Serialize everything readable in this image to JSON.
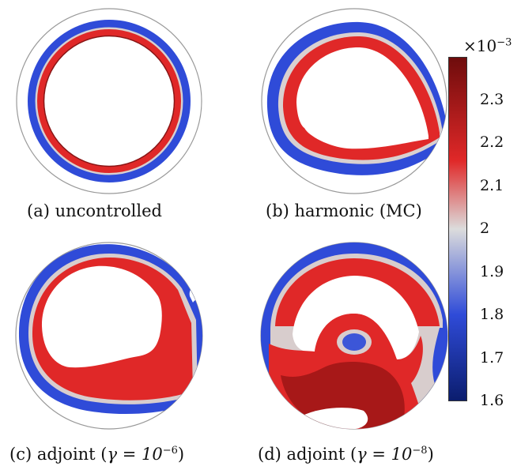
{
  "panels": [
    {
      "caption_prefix": "(a) uncontrolled",
      "caption_expr": "",
      "caption_exp": "",
      "caption_suffix": ""
    },
    {
      "caption_prefix": "(b) harmonic (MC)",
      "caption_expr": "",
      "caption_exp": "",
      "caption_suffix": ""
    },
    {
      "caption_prefix": "(c) adjoint (",
      "caption_expr": "γ = 10",
      "caption_exp": "−6",
      "caption_suffix": ")"
    },
    {
      "caption_prefix": "(d) adjoint (",
      "caption_expr": "γ = 10",
      "caption_exp": "−8",
      "caption_suffix": ")"
    }
  ],
  "colorbar": {
    "multiplier_base": "×10",
    "multiplier_exp": "−3",
    "ticks": [
      "2.3",
      "2.2",
      "2.1",
      "2",
      "1.9",
      "1.8",
      "1.7",
      "1.6"
    ],
    "min": 1.6,
    "max": 2.4,
    "colors": {
      "low": "#0b1d6e",
      "blue": "#2f4bd8",
      "mid": "#dcdcdc",
      "red": "#e02828",
      "high": "#6e0c0c"
    }
  }
}
